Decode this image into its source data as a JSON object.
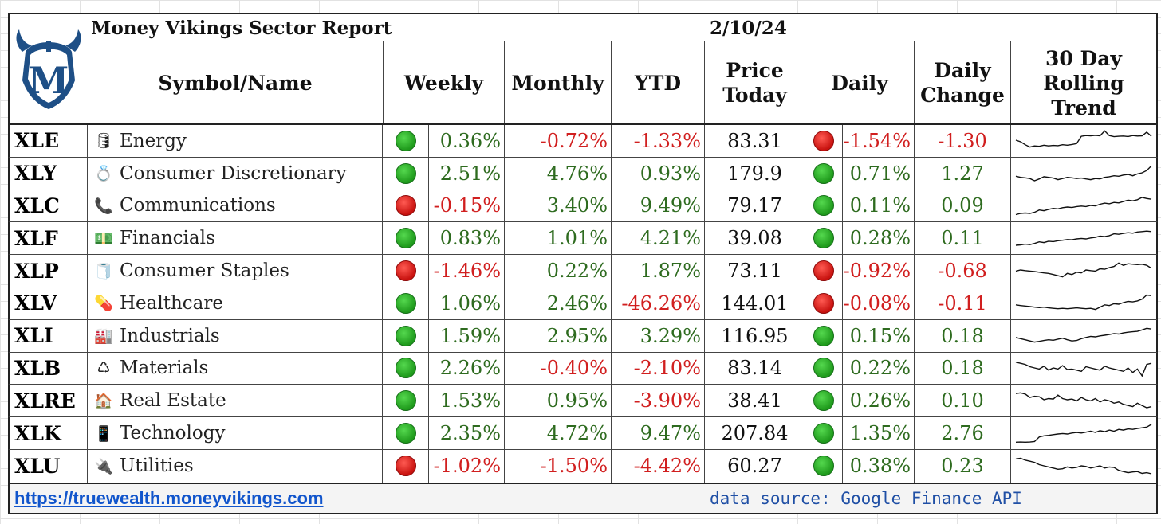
{
  "header": {
    "title": "Money Vikings Sector Report",
    "date": "2/10/24",
    "logo_letter": "M",
    "columns": {
      "symbol": "Symbol/Name",
      "weekly": "Weekly",
      "monthly": "Monthly",
      "ytd": "YTD",
      "price": "Price\nToday",
      "daily": "Daily",
      "daily_change": "Daily\nChange",
      "trend": "30 Day\nRolling\nTrend"
    }
  },
  "colors": {
    "positive": "#2e6b1f",
    "negative": "#d11f1f",
    "link": "#1155cc",
    "source": "#1f4fa5",
    "logo_blue": "#1e4f86"
  },
  "rows": [
    {
      "symbol": "XLE",
      "icon": "🛢",
      "icon_name": "oil-barrel-icon",
      "sector": "Energy",
      "weekly_dot": "green",
      "weekly": "0.36%",
      "monthly": "-0.72%",
      "ytd": "-1.33%",
      "price": "83.31",
      "daily_dot": "red",
      "daily": "-1.54%",
      "daily_change": "-1.30",
      "trend": [
        0.55,
        0.48,
        0.35,
        0.25,
        0.3,
        0.28,
        0.33,
        0.3,
        0.32,
        0.31,
        0.35,
        0.33,
        0.36,
        0.4,
        0.72,
        0.75,
        0.74,
        0.76,
        0.74,
        0.95,
        0.75,
        0.7,
        0.72,
        0.73,
        0.71,
        0.75,
        0.73,
        0.74,
        0.9,
        0.72
      ]
    },
    {
      "symbol": "XLY",
      "icon": "💍",
      "icon_name": "ring-icon",
      "sector": "Consumer Discretionary",
      "weekly_dot": "green",
      "weekly": "2.51%",
      "monthly": "4.76%",
      "ytd": "0.93%",
      "price": "179.9",
      "daily_dot": "green",
      "daily": "0.71%",
      "daily_change": "1.27",
      "trend": [
        0.4,
        0.35,
        0.33,
        0.3,
        0.2,
        0.28,
        0.38,
        0.35,
        0.32,
        0.25,
        0.3,
        0.35,
        0.33,
        0.3,
        0.32,
        0.28,
        0.25,
        0.3,
        0.28,
        0.35,
        0.38,
        0.42,
        0.4,
        0.45,
        0.48,
        0.42,
        0.5,
        0.55,
        0.65,
        0.85
      ]
    },
    {
      "symbol": "XLC",
      "icon": "📞",
      "icon_name": "telephone-icon",
      "sector": "Communications",
      "weekly_dot": "red",
      "weekly": "-0.15%",
      "monthly": "3.40%",
      "ytd": "9.49%",
      "price": "79.17",
      "daily_dot": "green",
      "daily": "0.11%",
      "daily_change": "0.09",
      "trend": [
        0.15,
        0.2,
        0.22,
        0.2,
        0.25,
        0.35,
        0.32,
        0.38,
        0.42,
        0.4,
        0.45,
        0.48,
        0.46,
        0.5,
        0.52,
        0.5,
        0.55,
        0.53,
        0.6,
        0.65,
        0.62,
        0.68,
        0.66,
        0.72,
        0.78,
        0.75,
        0.8,
        0.9,
        0.85,
        0.82
      ]
    },
    {
      "symbol": "XLF",
      "icon": "💵",
      "icon_name": "money-icon",
      "sector": "Financials",
      "weekly_dot": "green",
      "weekly": "0.83%",
      "monthly": "1.01%",
      "ytd": "4.21%",
      "price": "39.08",
      "daily_dot": "green",
      "daily": "0.28%",
      "daily_change": "0.11",
      "trend": [
        0.2,
        0.22,
        0.25,
        0.23,
        0.28,
        0.35,
        0.32,
        0.38,
        0.36,
        0.4,
        0.42,
        0.45,
        0.44,
        0.48,
        0.5,
        0.48,
        0.52,
        0.55,
        0.6,
        0.58,
        0.62,
        0.7,
        0.68,
        0.72,
        0.75,
        0.73,
        0.78,
        0.8,
        0.82,
        0.8
      ]
    },
    {
      "symbol": "XLP",
      "icon": "🧻",
      "icon_name": "toilet-paper-icon",
      "sector": "Consumer Staples",
      "weekly_dot": "red",
      "weekly": "-1.46%",
      "monthly": "0.22%",
      "ytd": "1.87%",
      "price": "73.11",
      "daily_dot": "red",
      "daily": "-0.92%",
      "daily_change": "-0.68",
      "trend": [
        0.5,
        0.55,
        0.52,
        0.5,
        0.48,
        0.45,
        0.42,
        0.4,
        0.35,
        0.3,
        0.25,
        0.4,
        0.35,
        0.45,
        0.42,
        0.55,
        0.52,
        0.5,
        0.6,
        0.58,
        0.65,
        0.7,
        0.85,
        0.75,
        0.82,
        0.8,
        0.78,
        0.8,
        0.75,
        0.62
      ]
    },
    {
      "symbol": "XLV",
      "icon": "💊",
      "icon_name": "pill-icon",
      "sector": "Healthcare",
      "weekly_dot": "green",
      "weekly": "1.06%",
      "monthly": "2.46%",
      "ytd": "-46.26%",
      "price": "144.01",
      "daily_dot": "red",
      "daily": "-0.08%",
      "daily_change": "-0.11",
      "trend": [
        0.45,
        0.42,
        0.4,
        0.38,
        0.35,
        0.33,
        0.35,
        0.32,
        0.3,
        0.28,
        0.3,
        0.28,
        0.3,
        0.32,
        0.3,
        0.28,
        0.3,
        0.25,
        0.35,
        0.45,
        0.42,
        0.5,
        0.48,
        0.55,
        0.6,
        0.58,
        0.62,
        0.7,
        0.88,
        0.85
      ]
    },
    {
      "symbol": "XLI",
      "icon": "🏭",
      "icon_name": "factory-icon",
      "sector": "Industrials",
      "weekly_dot": "green",
      "weekly": "1.59%",
      "monthly": "2.95%",
      "ytd": "3.29%",
      "price": "116.95",
      "daily_dot": "green",
      "daily": "0.15%",
      "daily_change": "0.18",
      "trend": [
        0.45,
        0.4,
        0.35,
        0.3,
        0.25,
        0.28,
        0.32,
        0.35,
        0.33,
        0.38,
        0.42,
        0.35,
        0.3,
        0.32,
        0.4,
        0.45,
        0.5,
        0.48,
        0.52,
        0.55,
        0.58,
        0.62,
        0.6,
        0.65,
        0.68,
        0.7,
        0.72,
        0.78,
        0.85,
        0.82
      ]
    },
    {
      "symbol": "XLB",
      "icon": "♺",
      "icon_name": "recycle-icon",
      "sector": "Materials",
      "weekly_dot": "green",
      "weekly": "2.26%",
      "monthly": "-0.40%",
      "ytd": "-2.10%",
      "price": "83.14",
      "daily_dot": "green",
      "daily": "0.22%",
      "daily_change": "0.18",
      "trend": [
        0.8,
        0.75,
        0.7,
        0.6,
        0.55,
        0.5,
        0.62,
        0.45,
        0.55,
        0.5,
        0.65,
        0.48,
        0.5,
        0.45,
        0.4,
        0.6,
        0.55,
        0.5,
        0.45,
        0.62,
        0.55,
        0.5,
        0.45,
        0.4,
        0.55,
        0.35,
        0.5,
        0.2,
        0.7,
        0.75
      ]
    },
    {
      "symbol": "XLRE",
      "icon": "🏠",
      "icon_name": "house-icon",
      "sector": "Real Estate",
      "weekly_dot": "green",
      "weekly": "1.53%",
      "monthly": "0.95%",
      "ytd": "-3.90%",
      "price": "38.41",
      "daily_dot": "green",
      "daily": "0.26%",
      "daily_change": "0.10",
      "trend": [
        0.82,
        0.85,
        0.8,
        0.65,
        0.7,
        0.68,
        0.55,
        0.6,
        0.58,
        0.75,
        0.6,
        0.55,
        0.58,
        0.5,
        0.65,
        0.55,
        0.5,
        0.6,
        0.45,
        0.55,
        0.5,
        0.4,
        0.45,
        0.35,
        0.3,
        0.25,
        0.4,
        0.3,
        0.2,
        0.25
      ]
    },
    {
      "symbol": "XLK",
      "icon": "📱",
      "icon_name": "mobile-phone-icon",
      "sector": "Technology",
      "weekly_dot": "green",
      "weekly": "2.35%",
      "monthly": "4.72%",
      "ytd": "9.47%",
      "price": "207.84",
      "daily_dot": "green",
      "daily": "1.35%",
      "daily_change": "2.76",
      "trend": [
        0.12,
        0.13,
        0.12,
        0.13,
        0.15,
        0.35,
        0.4,
        0.42,
        0.45,
        0.48,
        0.5,
        0.48,
        0.52,
        0.55,
        0.52,
        0.56,
        0.6,
        0.55,
        0.62,
        0.58,
        0.65,
        0.6,
        0.68,
        0.65,
        0.7,
        0.68,
        0.72,
        0.75,
        0.78,
        0.9
      ]
    },
    {
      "symbol": "XLU",
      "icon": "🔌",
      "icon_name": "electric-plug-icon",
      "sector": "Utilities",
      "weekly_dot": "red",
      "weekly": "-1.02%",
      "monthly": "-1.50%",
      "ytd": "-4.42%",
      "price": "60.27",
      "daily_dot": "green",
      "daily": "0.38%",
      "daily_change": "0.23",
      "trend": [
        0.85,
        0.88,
        0.8,
        0.75,
        0.7,
        0.6,
        0.55,
        0.5,
        0.45,
        0.4,
        0.42,
        0.5,
        0.45,
        0.48,
        0.55,
        0.52,
        0.45,
        0.5,
        0.55,
        0.45,
        0.5,
        0.48,
        0.35,
        0.3,
        0.25,
        0.28,
        0.3,
        0.22,
        0.25,
        0.2
      ]
    }
  ],
  "footer": {
    "link": "https://truewealth.moneyvikings.com",
    "source": "data source: Google Finance API"
  }
}
